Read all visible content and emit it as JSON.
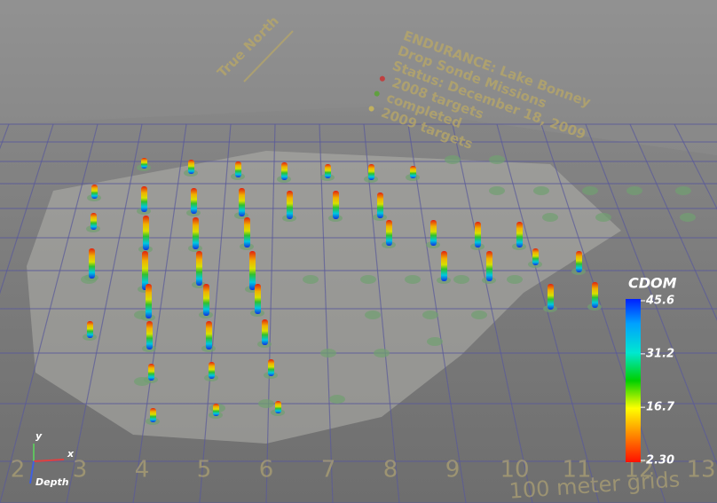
{
  "overlay": {
    "title": "ENDURANCE: Lake Bonney",
    "subtitle": "Drop Sonde Missions",
    "status": "Status: December 18, 2009",
    "legend": [
      "2008 targets",
      "completed",
      "2009 targets"
    ],
    "north": "True North"
  },
  "colorbar": {
    "title": "CDOM",
    "range": [
      2.3,
      45.6
    ],
    "ticks": [
      45.6,
      31.2,
      16.7,
      {
        "value": 2.3,
        "label": "2.30"
      }
    ]
  },
  "grid_labels": [
    2,
    3,
    4,
    5,
    6,
    7,
    8,
    9,
    10,
    11,
    12,
    13
  ],
  "grid_caption": "100 meter grids",
  "axes": {
    "y": "y",
    "x": "x",
    "depth": "Depth"
  }
}
